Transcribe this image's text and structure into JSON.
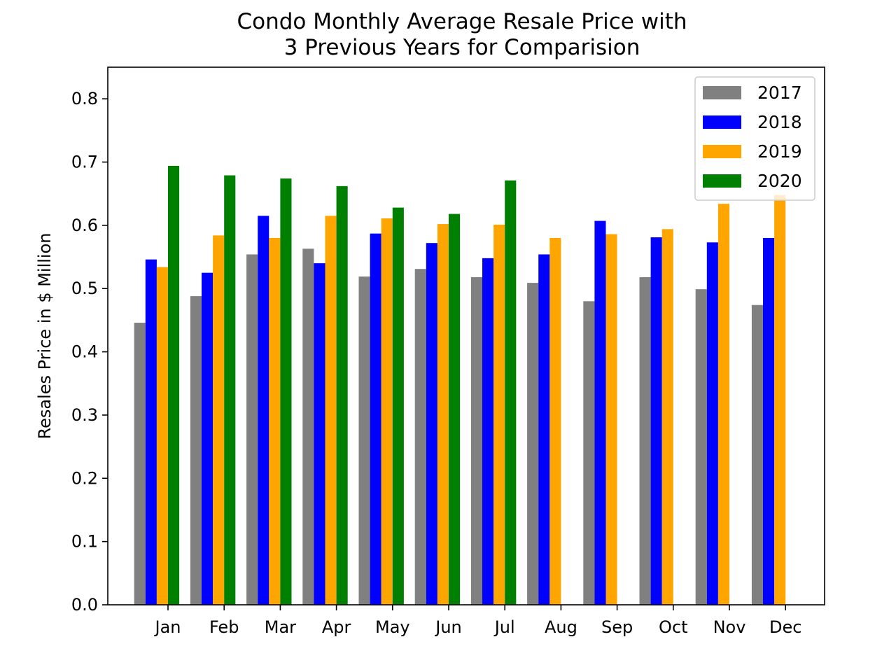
{
  "chart_data": {
    "type": "bar",
    "title_line1": "Condo Monthly Average Resale Price with",
    "title_line2": "3 Previous Years for Comparision",
    "xlabel": "",
    "ylabel": "Resales Price in $ Million",
    "ylim": [
      0,
      0.85
    ],
    "yticks": [
      "0.0",
      "0.1",
      "0.2",
      "0.3",
      "0.4",
      "0.5",
      "0.6",
      "0.7",
      "0.8"
    ],
    "grid": false,
    "legend_position": "top-right",
    "categories": [
      "Jan",
      "Feb",
      "Mar",
      "Apr",
      "May",
      "Jun",
      "Jul",
      "Aug",
      "Sep",
      "Oct",
      "Nov",
      "Dec"
    ],
    "series": [
      {
        "name": "2017",
        "color": "#808080",
        "values": [
          0.446,
          0.488,
          0.554,
          0.563,
          0.519,
          0.531,
          0.518,
          0.509,
          0.48,
          0.518,
          0.499,
          0.474
        ]
      },
      {
        "name": "2018",
        "color": "#0000ff",
        "values": [
          0.546,
          0.525,
          0.615,
          0.54,
          0.587,
          0.572,
          0.548,
          0.554,
          0.607,
          0.581,
          0.573,
          0.58
        ]
      },
      {
        "name": "2019",
        "color": "#ffa500",
        "values": [
          0.534,
          0.584,
          0.58,
          0.615,
          0.611,
          0.602,
          0.601,
          0.58,
          0.586,
          0.594,
          0.634,
          0.648
        ]
      },
      {
        "name": "2020",
        "color": "#008000",
        "values": [
          0.694,
          0.679,
          0.674,
          0.662,
          0.628,
          0.618,
          0.671,
          null,
          null,
          null,
          null,
          null
        ]
      }
    ]
  }
}
